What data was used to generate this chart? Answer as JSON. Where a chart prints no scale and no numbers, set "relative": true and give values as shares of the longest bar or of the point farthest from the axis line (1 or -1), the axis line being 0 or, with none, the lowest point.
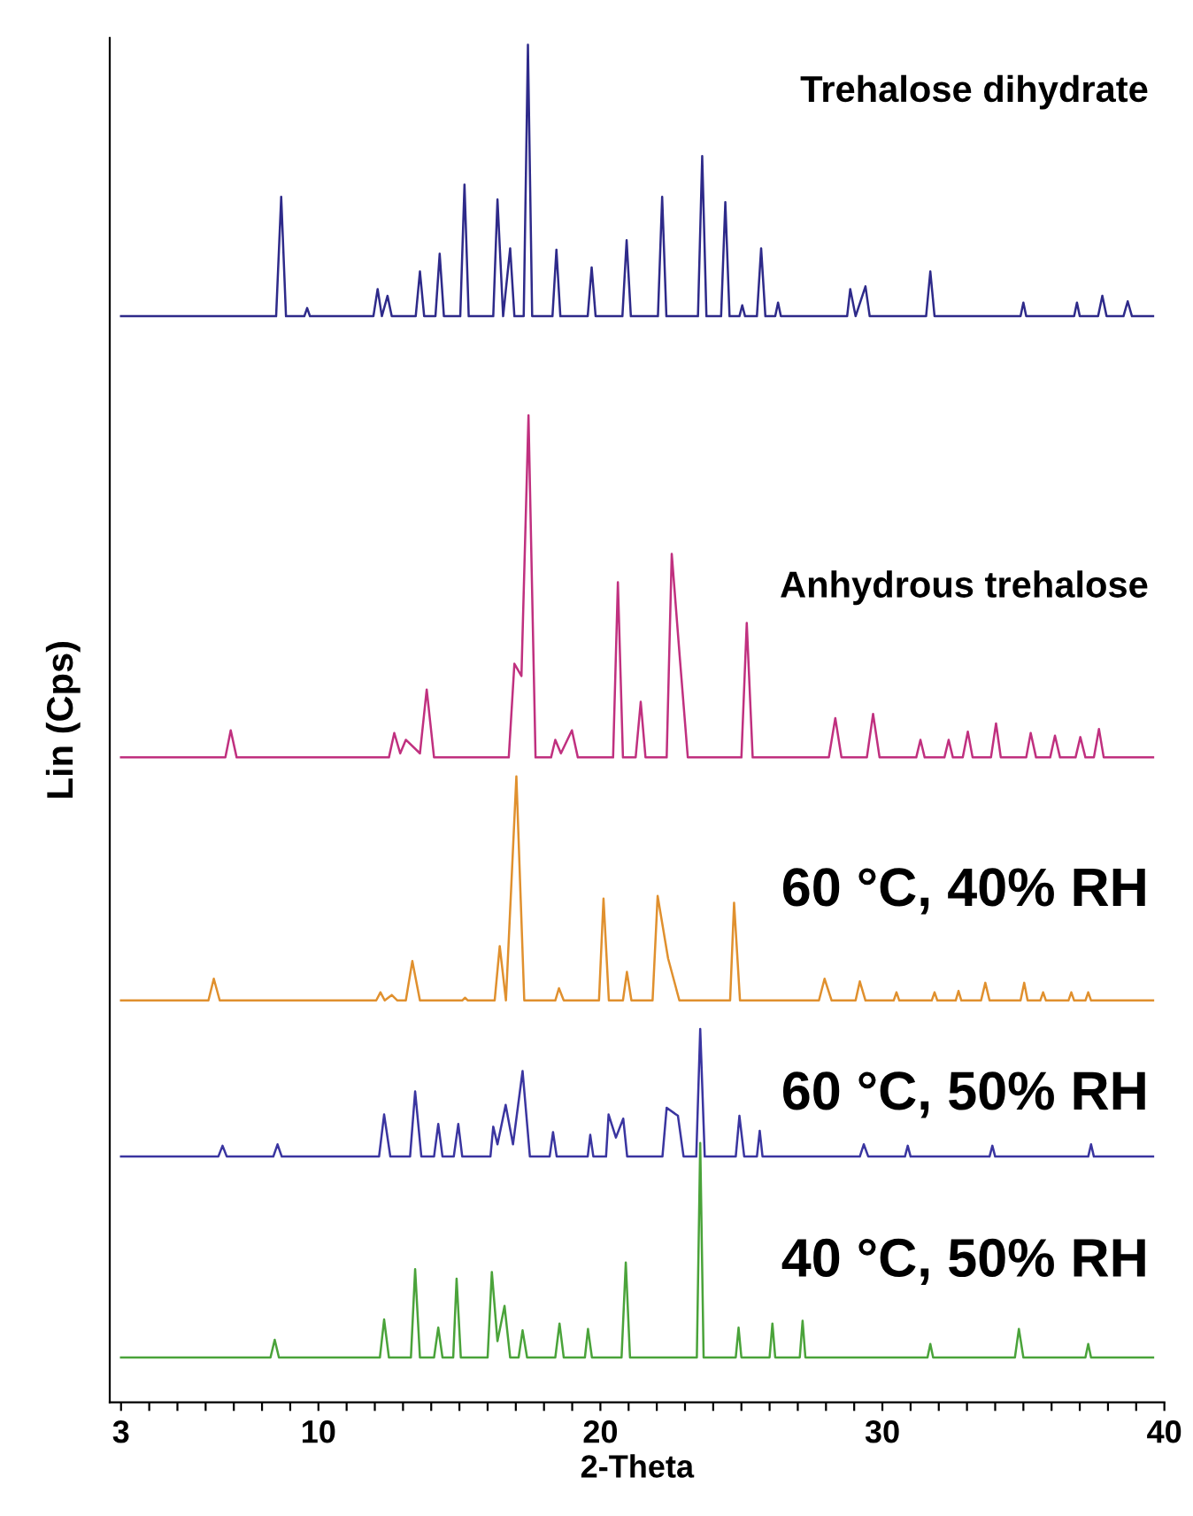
{
  "chart_data": {
    "type": "line",
    "relative": true,
    "xlabel": "2-Theta",
    "ylabel": "Lin (Cps)",
    "xlim": [
      2.6,
      40
    ],
    "xticks": [
      3,
      {
        "value": 4,
        "label": null
      },
      {
        "value": 5,
        "label": null
      },
      {
        "value": 6,
        "label": null
      },
      {
        "value": 7,
        "label": null
      },
      {
        "value": 8,
        "label": null
      },
      {
        "value": 9,
        "label": null
      },
      10,
      {
        "value": 11,
        "label": null
      },
      {
        "value": 12,
        "label": null
      },
      {
        "value": 13,
        "label": null
      },
      {
        "value": 14,
        "label": null
      },
      {
        "value": 15,
        "label": null
      },
      {
        "value": 16,
        "label": null
      },
      {
        "value": 17,
        "label": null
      },
      {
        "value": 18,
        "label": null
      },
      {
        "value": 19,
        "label": null
      },
      20,
      {
        "value": 21,
        "label": null
      },
      {
        "value": 22,
        "label": null
      },
      {
        "value": 23,
        "label": null
      },
      {
        "value": 24,
        "label": null
      },
      {
        "value": 25,
        "label": null
      },
      {
        "value": 26,
        "label": null
      },
      {
        "value": 27,
        "label": null
      },
      {
        "value": 28,
        "label": null
      },
      {
        "value": 29,
        "label": null
      },
      30,
      {
        "value": 31,
        "label": null
      },
      {
        "value": 32,
        "label": null
      },
      {
        "value": 33,
        "label": null
      },
      {
        "value": 34,
        "label": null
      },
      {
        "value": 35,
        "label": null
      },
      {
        "value": 36,
        "label": null
      },
      {
        "value": 37,
        "label": null
      },
      {
        "value": 38,
        "label": null
      },
      {
        "value": 39,
        "label": null
      },
      40
    ],
    "tick_labels": "x",
    "grid": false,
    "legend": false,
    "marker": "none",
    "line_style": "solid",
    "series": [
      {
        "name": "Trehalose dihydrate",
        "color": "#2e2a8a",
        "x": [
          3.0,
          8.5,
          8.68,
          8.85,
          9.5,
          9.6,
          9.7,
          11.95,
          12.1,
          12.25,
          12.45,
          12.6,
          13.45,
          13.6,
          13.75,
          14.15,
          14.3,
          14.45,
          15.03,
          15.18,
          15.33,
          16.2,
          16.35,
          16.55,
          16.8,
          16.95,
          17.28,
          17.43,
          17.58,
          18.3,
          18.44,
          18.58,
          19.55,
          19.69,
          19.83,
          20.78,
          20.93,
          21.08,
          22.04,
          22.19,
          22.34,
          23.46,
          23.61,
          23.76,
          24.28,
          24.43,
          24.58,
          24.93,
          25.03,
          25.13,
          25.55,
          25.7,
          25.85,
          26.2,
          26.3,
          26.4,
          28.75,
          28.86,
          29.05,
          29.4,
          29.55,
          31.55,
          31.7,
          31.85,
          34.9,
          35.0,
          35.1,
          36.8,
          36.9,
          37.0,
          37.65,
          37.8,
          37.95,
          38.55,
          38.7,
          38.85,
          39.6
        ],
        "values": [
          0.8,
          0.8,
          0.888,
          0.8,
          0.8,
          0.806,
          0.8,
          0.8,
          0.82,
          0.8,
          0.815,
          0.8,
          0.8,
          0.833,
          0.8,
          0.8,
          0.846,
          0.8,
          0.8,
          0.897,
          0.8,
          0.8,
          0.886,
          0.8,
          0.85,
          0.8,
          0.8,
          1.0,
          0.8,
          0.8,
          0.849,
          0.8,
          0.8,
          0.836,
          0.8,
          0.8,
          0.856,
          0.8,
          0.8,
          0.888,
          0.8,
          0.8,
          0.918,
          0.8,
          0.8,
          0.884,
          0.8,
          0.8,
          0.808,
          0.8,
          0.8,
          0.85,
          0.8,
          0.8,
          0.81,
          0.8,
          0.8,
          0.82,
          0.8,
          0.822,
          0.8,
          0.8,
          0.833,
          0.8,
          0.8,
          0.81,
          0.8,
          0.8,
          0.81,
          0.8,
          0.8,
          0.815,
          0.8,
          0.8,
          0.811,
          0.8,
          0.8
        ]
      },
      {
        "name": "Anhydrous trehalose",
        "color": "#c0307f",
        "x": [
          3.0,
          6.7,
          6.89,
          7.1,
          12.5,
          12.69,
          12.9,
          13.1,
          13.6,
          13.84,
          14.1,
          16.75,
          16.95,
          17.2,
          17.45,
          17.7,
          18.25,
          18.4,
          18.6,
          18.99,
          19.2,
          20.45,
          20.62,
          20.8,
          21.25,
          21.43,
          21.6,
          22.35,
          22.53,
          22.81,
          23.1,
          25.0,
          25.19,
          25.4,
          28.1,
          28.33,
          28.55,
          29.45,
          29.67,
          29.9,
          31.2,
          31.35,
          31.5,
          32.2,
          32.35,
          32.5,
          32.85,
          33.03,
          33.2,
          33.85,
          34.03,
          34.2,
          35.1,
          35.26,
          35.45,
          35.95,
          36.12,
          36.3,
          36.85,
          37.02,
          37.2,
          37.5,
          37.68,
          37.85,
          39.6
        ],
        "values": [
          0.475,
          0.475,
          0.495,
          0.475,
          0.475,
          0.493,
          0.478,
          0.488,
          0.478,
          0.525,
          0.475,
          0.475,
          0.544,
          0.535,
          0.727,
          0.475,
          0.475,
          0.488,
          0.478,
          0.495,
          0.475,
          0.475,
          0.604,
          0.475,
          0.475,
          0.516,
          0.475,
          0.475,
          0.625,
          0.55,
          0.475,
          0.475,
          0.574,
          0.475,
          0.475,
          0.504,
          0.475,
          0.475,
          0.507,
          0.475,
          0.475,
          0.488,
          0.475,
          0.475,
          0.488,
          0.475,
          0.475,
          0.494,
          0.475,
          0.475,
          0.5,
          0.475,
          0.475,
          0.493,
          0.475,
          0.475,
          0.491,
          0.475,
          0.475,
          0.49,
          0.475,
          0.475,
          0.496,
          0.475,
          0.475
        ]
      },
      {
        "name": "60 °C, 40% RH",
        "color": "#e0902e",
        "x": [
          3.0,
          6.1,
          6.29,
          6.5,
          12.05,
          12.2,
          12.35,
          12.6,
          12.8,
          13.1,
          13.33,
          13.6,
          15.1,
          15.2,
          15.3,
          16.25,
          16.43,
          16.65,
          17.02,
          17.3,
          18.4,
          18.53,
          18.7,
          19.95,
          20.11,
          20.3,
          20.8,
          20.94,
          21.1,
          21.85,
          22.03,
          22.4,
          22.8,
          24.6,
          24.74,
          24.95,
          27.75,
          27.95,
          28.2,
          29.05,
          29.2,
          29.4,
          30.4,
          30.5,
          30.6,
          31.75,
          31.85,
          31.95,
          32.6,
          32.7,
          32.8,
          33.5,
          33.65,
          33.8,
          34.9,
          35.03,
          35.15,
          35.6,
          35.7,
          35.8,
          36.6,
          36.7,
          36.8,
          37.2,
          37.3,
          37.4,
          39.6
        ],
        "values": [
          0.296,
          0.296,
          0.312,
          0.296,
          0.296,
          0.302,
          0.296,
          0.3,
          0.296,
          0.296,
          0.325,
          0.296,
          0.296,
          0.298,
          0.296,
          0.296,
          0.336,
          0.296,
          0.461,
          0.296,
          0.296,
          0.305,
          0.296,
          0.296,
          0.371,
          0.296,
          0.296,
          0.317,
          0.296,
          0.296,
          0.373,
          0.327,
          0.296,
          0.296,
          0.368,
          0.296,
          0.296,
          0.312,
          0.296,
          0.296,
          0.31,
          0.296,
          0.296,
          0.302,
          0.296,
          0.296,
          0.302,
          0.296,
          0.296,
          0.303,
          0.296,
          0.296,
          0.309,
          0.296,
          0.296,
          0.309,
          0.296,
          0.296,
          0.302,
          0.296,
          0.296,
          0.302,
          0.296,
          0.296,
          0.302,
          0.296,
          0.296
        ]
      },
      {
        "name": "60 °C, 50% RH",
        "color": "#3a35a0",
        "x": [
          3.0,
          6.45,
          6.6,
          6.75,
          8.4,
          8.55,
          8.7,
          12.15,
          12.33,
          12.55,
          13.25,
          13.43,
          13.65,
          14.1,
          14.25,
          14.4,
          14.8,
          14.96,
          15.1,
          16.1,
          16.2,
          16.35,
          16.64,
          16.9,
          17.24,
          17.5,
          18.2,
          18.32,
          18.45,
          19.55,
          19.64,
          19.75,
          20.2,
          20.29,
          20.55,
          20.81,
          20.95,
          22.2,
          22.35,
          22.75,
          22.95,
          23.4,
          23.54,
          23.7,
          24.8,
          24.93,
          25.1,
          25.55,
          25.65,
          25.75,
          29.2,
          29.34,
          29.5,
          30.8,
          30.9,
          31.0,
          33.8,
          33.9,
          34.0,
          37.3,
          37.4,
          37.5,
          39.6
        ],
        "values": [
          0.181,
          0.181,
          0.189,
          0.181,
          0.181,
          0.19,
          0.181,
          0.181,
          0.212,
          0.181,
          0.181,
          0.229,
          0.181,
          0.181,
          0.205,
          0.181,
          0.181,
          0.205,
          0.181,
          0.181,
          0.203,
          0.19,
          0.219,
          0.19,
          0.244,
          0.181,
          0.181,
          0.199,
          0.181,
          0.181,
          0.197,
          0.181,
          0.181,
          0.212,
          0.195,
          0.209,
          0.181,
          0.181,
          0.217,
          0.211,
          0.181,
          0.181,
          0.275,
          0.181,
          0.181,
          0.211,
          0.181,
          0.181,
          0.2,
          0.181,
          0.181,
          0.19,
          0.181,
          0.181,
          0.189,
          0.181,
          0.181,
          0.189,
          0.181,
          0.181,
          0.19,
          0.181,
          0.181
        ]
      },
      {
        "name": "40 °C, 50% RH",
        "color": "#4aa33a",
        "x": [
          3.0,
          8.3,
          8.45,
          8.6,
          12.18,
          12.33,
          12.5,
          13.28,
          13.43,
          13.6,
          14.1,
          14.25,
          14.4,
          14.78,
          14.9,
          15.05,
          16.0,
          16.15,
          16.35,
          16.6,
          16.8,
          17.1,
          17.24,
          17.4,
          18.4,
          18.55,
          18.7,
          19.45,
          19.56,
          19.7,
          20.75,
          20.9,
          21.05,
          23.42,
          23.54,
          23.66,
          24.8,
          24.9,
          25.0,
          26.0,
          26.1,
          26.2,
          27.07,
          27.17,
          27.27,
          31.6,
          31.7,
          31.8,
          34.7,
          34.84,
          35.0,
          37.2,
          37.3,
          37.4,
          39.6
        ],
        "values": [
          0.033,
          0.033,
          0.046,
          0.033,
          0.033,
          0.061,
          0.033,
          0.033,
          0.098,
          0.033,
          0.033,
          0.055,
          0.033,
          0.033,
          0.091,
          0.033,
          0.033,
          0.096,
          0.045,
          0.071,
          0.033,
          0.033,
          0.053,
          0.033,
          0.033,
          0.058,
          0.033,
          0.033,
          0.054,
          0.033,
          0.033,
          0.103,
          0.033,
          0.033,
          0.191,
          0.033,
          0.033,
          0.055,
          0.033,
          0.033,
          0.058,
          0.033,
          0.033,
          0.06,
          0.033,
          0.033,
          0.043,
          0.033,
          0.033,
          0.054,
          0.033,
          0.033,
          0.043,
          0.033,
          0.033
        ]
      }
    ]
  }
}
